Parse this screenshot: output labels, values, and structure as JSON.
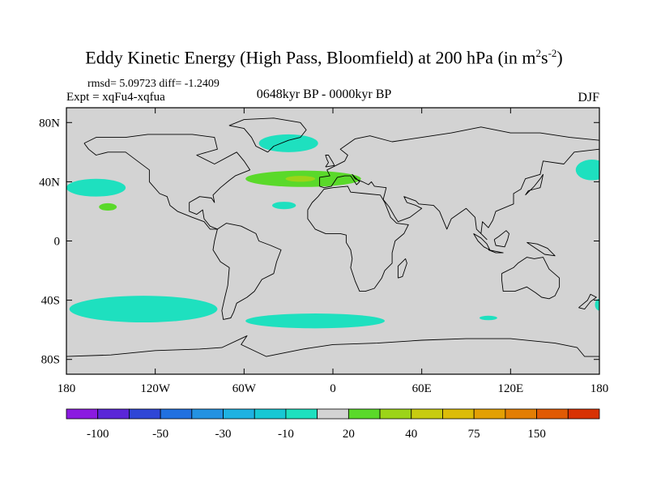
{
  "title": {
    "prefix": "Eddy Kinetic Energy (High Pass, Bloomfield) at 200 hPa (in m",
    "sup1": "2",
    "mid": "s",
    "sup2": "-2",
    "suffix": ")"
  },
  "stats": "rmsd= 5.09723 diff= -1.2409",
  "expt": "Expt = xqFu4-xqfua",
  "period": "0648kyr BP - 0000kyr BP",
  "season": "DJF",
  "chart_data": {
    "type": "heatmap",
    "projection": "cylindrical-equidistant",
    "xlim": [
      -180,
      180
    ],
    "ylim": [
      -90,
      90
    ],
    "x_ticks": [
      {
        "value": -180,
        "label": "180"
      },
      {
        "value": -120,
        "label": "120W"
      },
      {
        "value": -60,
        "label": "60W"
      },
      {
        "value": 0,
        "label": "0"
      },
      {
        "value": 60,
        "label": "60E"
      },
      {
        "value": 120,
        "label": "120E"
      },
      {
        "value": 180,
        "label": "180"
      }
    ],
    "y_ticks": [
      {
        "value": 80,
        "label": "80N"
      },
      {
        "value": 40,
        "label": "40N"
      },
      {
        "value": 0,
        "label": "0"
      },
      {
        "value": -40,
        "label": "40S"
      },
      {
        "value": -80,
        "label": "80S"
      }
    ],
    "background_color": "#d3d3d3",
    "colorbar": {
      "colors": [
        "#8b1ae0",
        "#5a26d8",
        "#2f46d6",
        "#2070e0",
        "#2492e2",
        "#1fb2e2",
        "#17c8d4",
        "#1ee0bf",
        "#d3d3d3",
        "#5ad92a",
        "#9cd418",
        "#c8cc10",
        "#dcbc08",
        "#e3a004",
        "#e37e04",
        "#e05a04",
        "#d83204"
      ],
      "labels": [
        {
          "after_box": 1,
          "text": "-100"
        },
        {
          "after_box": 3,
          "text": "-50"
        },
        {
          "after_box": 5,
          "text": "-30"
        },
        {
          "after_box": 7,
          "text": "-10"
        },
        {
          "after_box": 9,
          "text": "20"
        },
        {
          "after_box": 11,
          "text": "40"
        },
        {
          "after_box": 13,
          "text": "75"
        },
        {
          "after_box": 15,
          "text": "150"
        }
      ]
    },
    "regions": [
      {
        "name": "pacific-east",
        "color": "#1ee0bf",
        "lon_center": -160,
        "lat_center": 36,
        "lon_half": 20,
        "lat_half": 6
      },
      {
        "name": "pacific-small",
        "color": "#5ad92a",
        "lon_center": -152,
        "lat_center": 23,
        "lon_half": 6,
        "lat_half": 2.5
      },
      {
        "name": "greenland-arctic",
        "color": "#1ee0bf",
        "lon_center": -30,
        "lat_center": 66,
        "lon_half": 20,
        "lat_half": 6
      },
      {
        "name": "atlantic-jet",
        "color": "#5ad92a",
        "lon_center": -20,
        "lat_center": 42,
        "lon_half": 39,
        "lat_half": 5.5
      },
      {
        "name": "atlantic-jet-core",
        "color": "#9cd418",
        "lon_center": -22,
        "lat_center": 42,
        "lon_half": 10,
        "lat_half": 2
      },
      {
        "name": "atlantic-south",
        "color": "#1ee0bf",
        "lon_center": -33,
        "lat_center": 24,
        "lon_half": 8,
        "lat_half": 2.5
      },
      {
        "name": "pacific-far-east",
        "color": "#1ee0bf",
        "lon_center": 175,
        "lat_center": 48,
        "lon_half": 11,
        "lat_half": 7
      },
      {
        "name": "southern-pacific",
        "color": "#1ee0bf",
        "lon_center": -128,
        "lat_center": -46,
        "lon_half": 50,
        "lat_half": 9
      },
      {
        "name": "southern-atlantic",
        "color": "#1ee0bf",
        "lon_center": -12,
        "lat_center": -54,
        "lon_half": 47,
        "lat_half": 5
      },
      {
        "name": "southern-indian-small",
        "color": "#1ee0bf",
        "lon_center": 105,
        "lat_center": -52,
        "lon_half": 6,
        "lat_half": 1.5
      },
      {
        "name": "southern-pacific-west",
        "color": "#1ee0bf",
        "lon_center": 180,
        "lat_center": -43,
        "lon_half": 3,
        "lat_half": 4
      }
    ]
  }
}
